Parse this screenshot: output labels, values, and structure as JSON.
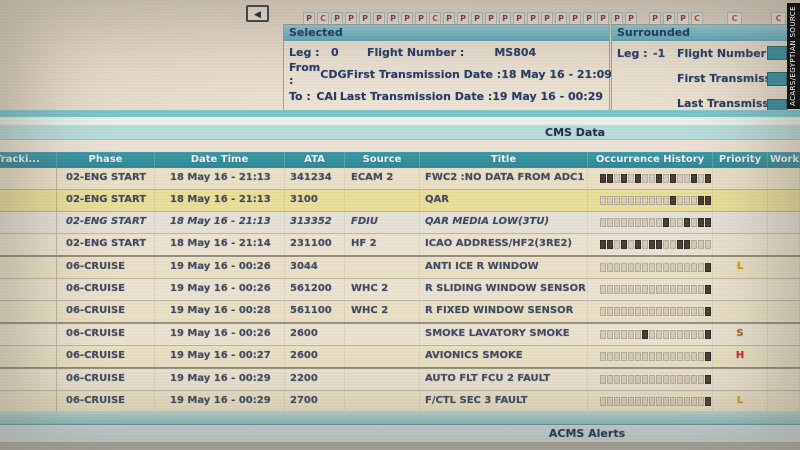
{
  "watermark": "ACARS/EGYPTIAN SOURCE",
  "toolbar": {
    "back_icon": "◀",
    "button_groups": [
      [
        "P",
        "C",
        "P",
        "P",
        "P",
        "P",
        "P",
        "P",
        "P",
        "C",
        "P",
        "P",
        "P",
        "P",
        "P",
        "P",
        "P",
        "P",
        "P",
        "P",
        "P",
        "P",
        "P",
        "P"
      ],
      [
        "P",
        "P",
        "P",
        "C"
      ],
      [
        "C"
      ],
      [
        "C"
      ]
    ]
  },
  "selected_panel": {
    "title": "Selected",
    "leg_label": "Leg :",
    "leg_value": "0",
    "flight_label": "Flight Number :",
    "flight_value": "MS804",
    "from_label": "From :",
    "from_value": "CDG",
    "first_label": "First Transmission Date :",
    "first_value": "18 May 16 - 21:09",
    "to_label": "To :",
    "to_value": "CAI",
    "last_label": "Last Transmission Date :",
    "last_value": "19 May 16 - 00:29"
  },
  "surrounded_panel": {
    "title": "Surrounded",
    "leg_label": "Leg :",
    "leg_value": "-1",
    "flight_label": "Flight Number :",
    "first_label": "First Transmission Date",
    "last_label": "Last Transmission Date"
  },
  "cms_section": {
    "title": "CMS Data"
  },
  "table": {
    "columns": [
      "Tracki...",
      "Phase",
      "Date Time",
      "ATA",
      "Source",
      "Title",
      "Occurrence History",
      "Priority",
      "Work"
    ],
    "rows": [
      {
        "phase": "02-ENG START",
        "date_time": "18 May 16 - 21:13",
        "ata": "341234",
        "source": "ECAM 2",
        "title": "FWC2 :NO DATA FROM ADC1",
        "occurrence": "1101010010100101",
        "priority": "",
        "italic": false,
        "highlight": "",
        "separator": false
      },
      {
        "phase": "02-ENG START",
        "date_time": "18 May 16 - 21:13",
        "ata": "3100",
        "source": "",
        "title": "QAR",
        "occurrence": "0000000000100011",
        "priority": "",
        "italic": false,
        "highlight": "yellow",
        "separator": false
      },
      {
        "phase": "02-ENG START",
        "date_time": "18 May 16 - 21:13",
        "ata": "313352",
        "source": "FDIU",
        "title": "QAR MEDIA LOW(3TU)",
        "occurrence": "0000000001001011",
        "priority": "",
        "italic": true,
        "highlight": "pale",
        "separator": false
      },
      {
        "phase": "02-ENG START",
        "date_time": "18 May 16 - 21:14",
        "ata": "231100",
        "source": "HF 2",
        "title": "ICAO ADDRESS/HF2(3RE2)",
        "occurrence": "1101010110011000",
        "priority": "",
        "italic": false,
        "highlight": "",
        "separator": true
      },
      {
        "phase": "06-CRUISE",
        "date_time": "19 May 16 - 00:26",
        "ata": "3044",
        "source": "",
        "title": "ANTI ICE R WINDOW",
        "occurrence": "0000000000000001",
        "priority": "L",
        "italic": false,
        "highlight": "",
        "separator": false
      },
      {
        "phase": "06-CRUISE",
        "date_time": "19 May 16 - 00:26",
        "ata": "561200",
        "source": "WHC 2",
        "title": "R SLIDING WINDOW SENSOR",
        "occurrence": "0000000000000001",
        "priority": "",
        "italic": false,
        "highlight": "",
        "separator": false
      },
      {
        "phase": "06-CRUISE",
        "date_time": "19 May 16 - 00:28",
        "ata": "561100",
        "source": "WHC 2",
        "title": "R FIXED WINDOW SENSOR",
        "occurrence": "0000000000000001",
        "priority": "",
        "italic": false,
        "highlight": "",
        "separator": true
      },
      {
        "phase": "06-CRUISE",
        "date_time": "19 May 16 - 00:26",
        "ata": "2600",
        "source": "",
        "title": "SMOKE LAVATORY SMOKE",
        "occurrence": "0000001000000001",
        "priority": "S",
        "italic": false,
        "highlight": "",
        "separator": false
      },
      {
        "phase": "06-CRUISE",
        "date_time": "19 May 16 - 00:27",
        "ata": "2600",
        "source": "",
        "title": "AVIONICS SMOKE",
        "occurrence": "0000000000000001",
        "priority": "H",
        "italic": false,
        "highlight": "",
        "separator": true
      },
      {
        "phase": "06-CRUISE",
        "date_time": "19 May 16 - 00:29",
        "ata": "2200",
        "source": "",
        "title": "AUTO FLT FCU 2 FAULT",
        "occurrence": "0000000000000001",
        "priority": "",
        "italic": false,
        "highlight": "",
        "separator": false
      },
      {
        "phase": "06-CRUISE",
        "date_time": "19 May 16 - 00:29",
        "ata": "2700",
        "source": "",
        "title": "F/CTL SEC 3 FAULT",
        "occurrence": "0000000000000001",
        "priority": "L",
        "italic": false,
        "highlight": "",
        "separator": true
      }
    ]
  },
  "footer": {
    "title": "ACMS Alerts"
  },
  "colors": {
    "accent_teal": "#2e8c9e",
    "cms_bar": "#b7dddd",
    "row_highlight": "#ebdf9a",
    "priority": {
      "L": "#cfa400",
      "S": "#b5651d",
      "H": "#c8281e"
    },
    "button_p": "#7e3040",
    "button_c": "#c2402e"
  }
}
